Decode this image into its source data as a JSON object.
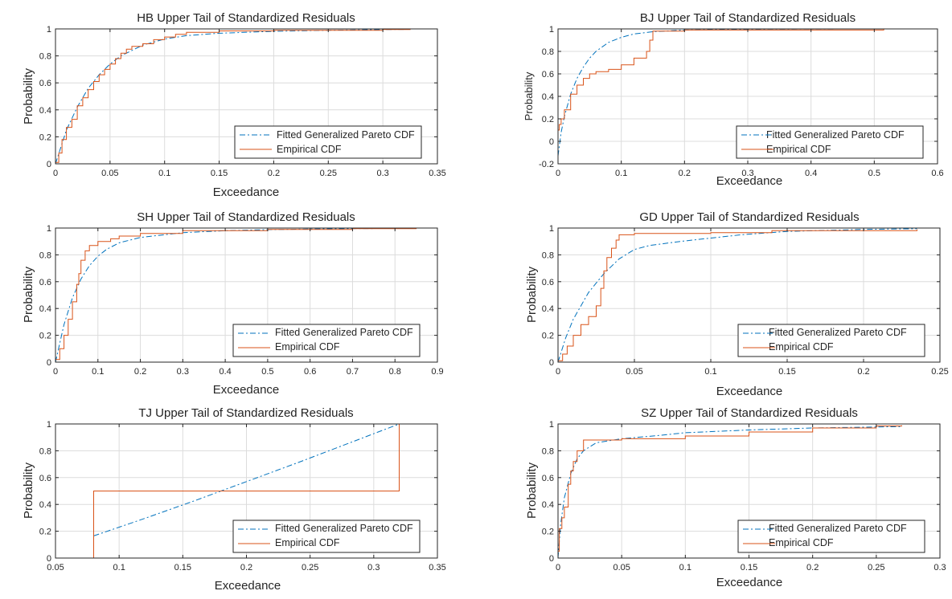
{
  "colors": {
    "fitted": "#0072BD",
    "empirical": "#D95319",
    "grid": "#dcdcdc",
    "axis": "#262626"
  },
  "chart_data": [
    {
      "type": "line",
      "title": "HB Upper Tail of Standardized Residuals",
      "xlabel": "Exceedance",
      "ylabel": "Probability",
      "xlim": [
        0,
        0.35
      ],
      "ylim": [
        0,
        1
      ],
      "xticks": [
        0,
        0.05,
        0.1,
        0.15,
        0.2,
        0.25,
        0.3,
        0.35
      ],
      "xtick_labels": [
        "0",
        "0.05",
        "0.1",
        "0.15",
        "0.2",
        "0.25",
        "0.3",
        "0.35"
      ],
      "yticks": [
        0,
        0.2,
        0.4,
        0.6,
        0.8,
        1
      ],
      "ytick_labels": [
        "0",
        "0.2",
        "0.4",
        "0.6",
        "0.8",
        "1"
      ],
      "legend": [
        "Fitted Generalized Pareto CDF",
        "Empirical CDF"
      ],
      "series": [
        {
          "name": "Fitted Generalized Pareto CDF",
          "style": "dashdot",
          "x": [
            0,
            0.01,
            0.02,
            0.03,
            0.04,
            0.05,
            0.06,
            0.08,
            0.1,
            0.12,
            0.15,
            0.2,
            0.25,
            0.3,
            0.325
          ],
          "y": [
            0,
            0.25,
            0.42,
            0.56,
            0.66,
            0.74,
            0.8,
            0.88,
            0.925,
            0.95,
            0.968,
            0.982,
            0.99,
            0.995,
            0.997
          ]
        },
        {
          "name": "Empirical CDF",
          "style": "step",
          "x": [
            0,
            0.003,
            0.006,
            0.01,
            0.015,
            0.02,
            0.025,
            0.03,
            0.035,
            0.04,
            0.045,
            0.05,
            0.055,
            0.06,
            0.065,
            0.07,
            0.08,
            0.09,
            0.1,
            0.11,
            0.12,
            0.15,
            0.2,
            0.3,
            0.325
          ],
          "y": [
            0.01,
            0.08,
            0.18,
            0.27,
            0.33,
            0.43,
            0.49,
            0.55,
            0.61,
            0.66,
            0.7,
            0.74,
            0.78,
            0.82,
            0.85,
            0.87,
            0.89,
            0.92,
            0.94,
            0.96,
            0.975,
            0.985,
            0.99,
            0.995,
            1
          ]
        }
      ]
    },
    {
      "type": "line",
      "title": "BJ Upper Tail of Standardized Residuals",
      "xlabel": "Exceedance",
      "ylabel": "Probability",
      "xlim": [
        0,
        0.6
      ],
      "ylim": [
        -0.2,
        1
      ],
      "xticks": [
        0,
        0.1,
        0.2,
        0.3,
        0.4,
        0.5,
        0.6
      ],
      "xtick_labels": [
        "0",
        "0.1",
        "0.2",
        "0.3",
        "0.4",
        "0.5",
        "0.6"
      ],
      "yticks": [
        -0.2,
        0,
        0.2,
        0.4,
        0.6,
        0.8,
        1
      ],
      "ytick_labels": [
        "-0.2",
        "0",
        "0.2",
        "0.4",
        "0.6",
        "0.8",
        "1"
      ],
      "legend": [
        "Fitted Generalized Pareto CDF",
        "Empirical CDF"
      ],
      "series": [
        {
          "name": "Fitted Generalized Pareto CDF",
          "style": "dashdot",
          "x": [
            0,
            0.005,
            0.01,
            0.02,
            0.03,
            0.04,
            0.05,
            0.06,
            0.08,
            0.1,
            0.12,
            0.15,
            0.2,
            0.3,
            0.4,
            0.5,
            0.515
          ],
          "y": [
            -0.13,
            0.08,
            0.22,
            0.42,
            0.56,
            0.66,
            0.74,
            0.8,
            0.88,
            0.925,
            0.955,
            0.975,
            0.99,
            0.997,
            0.999,
            1,
            1
          ]
        },
        {
          "name": "Empirical CDF",
          "style": "step",
          "x": [
            0,
            0.002,
            0.005,
            0.01,
            0.02,
            0.03,
            0.04,
            0.05,
            0.06,
            0.08,
            0.1,
            0.12,
            0.14,
            0.145,
            0.15,
            0.2,
            0.515
          ],
          "y": [
            0.1,
            0.15,
            0.2,
            0.28,
            0.42,
            0.5,
            0.56,
            0.6,
            0.62,
            0.64,
            0.68,
            0.74,
            0.8,
            0.9,
            0.98,
            0.99,
            1
          ]
        }
      ]
    },
    {
      "type": "line",
      "title": "SH Upper Tail of Standardized Residuals",
      "xlabel": "Exceedance",
      "ylabel": "Probability",
      "xlim": [
        0,
        0.9
      ],
      "ylim": [
        0,
        1
      ],
      "xticks": [
        0,
        0.1,
        0.2,
        0.3,
        0.4,
        0.5,
        0.6,
        0.7,
        0.8,
        0.9
      ],
      "xtick_labels": [
        "0",
        "0.1",
        "0.2",
        "0.3",
        "0.4",
        "0.5",
        "0.6",
        "0.7",
        "0.8",
        "0.9"
      ],
      "yticks": [
        0,
        0.2,
        0.4,
        0.6,
        0.8,
        1
      ],
      "ytick_labels": [
        "0",
        "0.2",
        "0.4",
        "0.6",
        "0.8",
        "1"
      ],
      "legend": [
        "Fitted Generalized Pareto CDF",
        "Empirical CDF"
      ],
      "series": [
        {
          "name": "Fitted Generalized Pareto CDF",
          "style": "dashdot",
          "x": [
            0,
            0.02,
            0.04,
            0.06,
            0.08,
            0.1,
            0.12,
            0.15,
            0.2,
            0.3,
            0.4,
            0.5,
            0.6,
            0.7,
            0.85
          ],
          "y": [
            0,
            0.28,
            0.48,
            0.62,
            0.72,
            0.79,
            0.84,
            0.89,
            0.93,
            0.965,
            0.98,
            0.988,
            0.993,
            0.996,
            0.998
          ]
        },
        {
          "name": "Empirical CDF",
          "style": "step",
          "x": [
            0,
            0.01,
            0.02,
            0.03,
            0.04,
            0.05,
            0.055,
            0.06,
            0.07,
            0.08,
            0.1,
            0.13,
            0.15,
            0.2,
            0.3,
            0.5,
            0.7,
            0.85
          ],
          "y": [
            0.02,
            0.1,
            0.2,
            0.32,
            0.45,
            0.58,
            0.66,
            0.76,
            0.83,
            0.87,
            0.9,
            0.92,
            0.94,
            0.96,
            0.98,
            0.99,
            0.995,
            1
          ]
        }
      ]
    },
    {
      "type": "line",
      "title": "GD Upper Tail of Standardized Residuals",
      "xlabel": "Exceedance",
      "ylabel": "Probability",
      "xlim": [
        0,
        0.25
      ],
      "ylim": [
        0,
        1
      ],
      "xticks": [
        0,
        0.05,
        0.1,
        0.15,
        0.2,
        0.25
      ],
      "xtick_labels": [
        "0",
        "0.05",
        "0.1",
        "0.15",
        "0.2",
        "0.25"
      ],
      "yticks": [
        0,
        0.2,
        0.4,
        0.6,
        0.8,
        1
      ],
      "ytick_labels": [
        "0",
        "0.2",
        "0.4",
        "0.6",
        "0.8",
        "1"
      ],
      "legend": [
        "Fitted Generalized Pareto CDF",
        "Empirical CDF"
      ],
      "series": [
        {
          "name": "Fitted Generalized Pareto CDF",
          "style": "dashdot",
          "x": [
            0,
            0.005,
            0.01,
            0.02,
            0.03,
            0.04,
            0.05,
            0.06,
            0.08,
            0.1,
            0.12,
            0.15,
            0.2,
            0.235
          ],
          "y": [
            0,
            0.18,
            0.32,
            0.52,
            0.66,
            0.77,
            0.84,
            0.87,
            0.9,
            0.925,
            0.95,
            0.975,
            0.99,
            0.995
          ]
        },
        {
          "name": "Empirical CDF",
          "style": "step",
          "x": [
            0,
            0.003,
            0.006,
            0.01,
            0.015,
            0.02,
            0.025,
            0.028,
            0.03,
            0.032,
            0.035,
            0.038,
            0.04,
            0.05,
            0.1,
            0.14,
            0.235
          ],
          "y": [
            0.01,
            0.06,
            0.12,
            0.2,
            0.28,
            0.34,
            0.42,
            0.55,
            0.68,
            0.78,
            0.85,
            0.91,
            0.95,
            0.96,
            0.965,
            0.98,
            0.99
          ]
        }
      ]
    },
    {
      "type": "line",
      "title": "TJ Upper Tail of Standardized Residuals",
      "xlabel": "Exceedance",
      "ylabel": "Probability",
      "xlim": [
        0.05,
        0.35
      ],
      "ylim": [
        0,
        1
      ],
      "xticks": [
        0.05,
        0.1,
        0.15,
        0.2,
        0.25,
        0.3,
        0.35
      ],
      "xtick_labels": [
        "0.05",
        "0.1",
        "0.15",
        "0.2",
        "0.25",
        "0.3",
        "0.35"
      ],
      "yticks": [
        0,
        0.2,
        0.4,
        0.6,
        0.8,
        1
      ],
      "ytick_labels": [
        "0",
        "0.2",
        "0.4",
        "0.6",
        "0.8",
        "1"
      ],
      "legend": [
        "Fitted Generalized Pareto CDF",
        "Empirical CDF"
      ],
      "series": [
        {
          "name": "Fitted Generalized Pareto CDF",
          "style": "dashdot",
          "x": [
            0.08,
            0.12,
            0.16,
            0.2,
            0.24,
            0.28,
            0.32
          ],
          "y": [
            0.165,
            0.295,
            0.43,
            0.57,
            0.71,
            0.855,
            1
          ]
        },
        {
          "name": "Empirical CDF",
          "style": "step",
          "x": [
            0.08,
            0.08,
            0.32,
            0.32
          ],
          "y": [
            0,
            0.5,
            0.5,
            1
          ]
        }
      ]
    },
    {
      "type": "line",
      "title": "SZ Upper Tail of Standardized Residuals",
      "xlabel": "Exceedance",
      "ylabel": "Probability",
      "xlim": [
        0,
        0.3
      ],
      "ylim": [
        0,
        1
      ],
      "xticks": [
        0,
        0.05,
        0.1,
        0.15,
        0.2,
        0.25,
        0.3
      ],
      "xtick_labels": [
        "0",
        "0.05",
        "0.1",
        "0.15",
        "0.2",
        "0.25",
        "0.3"
      ],
      "yticks": [
        0,
        0.2,
        0.4,
        0.6,
        0.8,
        1
      ],
      "ytick_labels": [
        "0",
        "0.2",
        "0.4",
        "0.6",
        "0.8",
        "1"
      ],
      "legend": [
        "Fitted Generalized Pareto CDF",
        "Empirical CDF"
      ],
      "series": [
        {
          "name": "Fitted Generalized Pareto CDF",
          "style": "dashdot",
          "x": [
            0,
            0.002,
            0.005,
            0.01,
            0.015,
            0.02,
            0.03,
            0.05,
            0.08,
            0.1,
            0.15,
            0.2,
            0.27
          ],
          "y": [
            0,
            0.25,
            0.45,
            0.63,
            0.74,
            0.8,
            0.86,
            0.89,
            0.915,
            0.935,
            0.955,
            0.97,
            0.98
          ]
        },
        {
          "name": "Empirical CDF",
          "style": "step",
          "x": [
            0,
            0.001,
            0.003,
            0.005,
            0.008,
            0.01,
            0.012,
            0.015,
            0.02,
            0.05,
            0.1,
            0.15,
            0.2,
            0.25,
            0.27
          ],
          "y": [
            0.05,
            0.22,
            0.3,
            0.38,
            0.55,
            0.65,
            0.72,
            0.8,
            0.88,
            0.89,
            0.91,
            0.94,
            0.97,
            0.985,
            0.99
          ]
        }
      ]
    }
  ]
}
